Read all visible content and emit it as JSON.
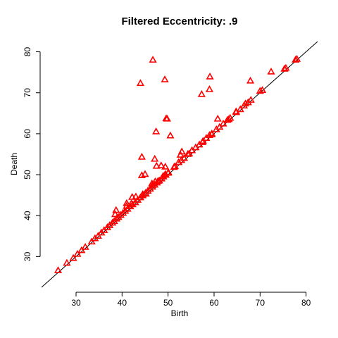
{
  "chart_data": {
    "type": "scatter",
    "title": "Filtered Eccentricity: .9",
    "xlabel": "Birth",
    "ylabel": "Death",
    "xlim": [
      22.5,
      82.5
    ],
    "ylim": [
      22.5,
      82.5
    ],
    "xticks": [
      30,
      40,
      50,
      60,
      70,
      80
    ],
    "yticks": [
      30,
      40,
      50,
      60,
      70,
      80
    ],
    "grid": false,
    "marker": "open-triangle",
    "color": "#ff0000",
    "reference_line": {
      "label": "",
      "slope": 1,
      "intercept": 0,
      "color": "#000000"
    },
    "points": [
      {
        "x": 26.1,
        "y": 26.6
      },
      {
        "x": 28.0,
        "y": 28.4
      },
      {
        "x": 29.4,
        "y": 29.6
      },
      {
        "x": 30.3,
        "y": 30.6
      },
      {
        "x": 31.2,
        "y": 31.5
      },
      {
        "x": 32.0,
        "y": 32.3
      },
      {
        "x": 33.4,
        "y": 33.6
      },
      {
        "x": 34.1,
        "y": 34.4
      },
      {
        "x": 34.8,
        "y": 35.0
      },
      {
        "x": 35.5,
        "y": 35.8
      },
      {
        "x": 36.1,
        "y": 36.4
      },
      {
        "x": 36.8,
        "y": 37.1
      },
      {
        "x": 37.3,
        "y": 37.6
      },
      {
        "x": 37.9,
        "y": 38.2
      },
      {
        "x": 38.3,
        "y": 38.6
      },
      {
        "x": 38.8,
        "y": 39.2
      },
      {
        "x": 39.2,
        "y": 39.6
      },
      {
        "x": 39.7,
        "y": 40.1
      },
      {
        "x": 40.2,
        "y": 40.6
      },
      {
        "x": 40.7,
        "y": 41.1
      },
      {
        "x": 41.2,
        "y": 41.6
      },
      {
        "x": 41.8,
        "y": 42.2
      },
      {
        "x": 42.3,
        "y": 42.7
      },
      {
        "x": 42.9,
        "y": 43.2
      },
      {
        "x": 43.4,
        "y": 43.8
      },
      {
        "x": 44.0,
        "y": 44.4
      },
      {
        "x": 44.5,
        "y": 44.9
      },
      {
        "x": 45.1,
        "y": 45.5
      },
      {
        "x": 45.6,
        "y": 46.0
      },
      {
        "x": 46.1,
        "y": 46.5
      },
      {
        "x": 46.6,
        "y": 47.0
      },
      {
        "x": 47.1,
        "y": 47.5
      },
      {
        "x": 47.6,
        "y": 48.0
      },
      {
        "x": 48.1,
        "y": 48.5
      },
      {
        "x": 48.6,
        "y": 49.0
      },
      {
        "x": 49.0,
        "y": 49.5
      },
      {
        "x": 49.5,
        "y": 49.9
      },
      {
        "x": 50.0,
        "y": 50.4
      },
      {
        "x": 51.5,
        "y": 52.0
      },
      {
        "x": 52.3,
        "y": 53.0
      },
      {
        "x": 52.9,
        "y": 53.5
      },
      {
        "x": 53.5,
        "y": 54.0
      },
      {
        "x": 54.3,
        "y": 55.0
      },
      {
        "x": 55.2,
        "y": 55.9
      },
      {
        "x": 56.0,
        "y": 56.6
      },
      {
        "x": 56.8,
        "y": 57.3
      },
      {
        "x": 57.6,
        "y": 58.2
      },
      {
        "x": 58.3,
        "y": 58.9
      },
      {
        "x": 59.0,
        "y": 59.6
      },
      {
        "x": 59.5,
        "y": 60.0
      },
      {
        "x": 60.5,
        "y": 61.0
      },
      {
        "x": 61.2,
        "y": 61.6
      },
      {
        "x": 62.0,
        "y": 62.4
      },
      {
        "x": 62.9,
        "y": 63.3
      },
      {
        "x": 63.5,
        "y": 63.8
      },
      {
        "x": 64.8,
        "y": 65.2
      },
      {
        "x": 65.7,
        "y": 65.9
      },
      {
        "x": 66.5,
        "y": 66.8
      },
      {
        "x": 67.4,
        "y": 67.6
      },
      {
        "x": 68.0,
        "y": 68.2
      },
      {
        "x": 70.0,
        "y": 70.4
      },
      {
        "x": 70.5,
        "y": 70.6
      },
      {
        "x": 75.3,
        "y": 75.8
      },
      {
        "x": 75.6,
        "y": 76.0
      },
      {
        "x": 77.7,
        "y": 78.0
      },
      {
        "x": 78.0,
        "y": 78.2
      },
      {
        "x": 38.5,
        "y": 40.3
      },
      {
        "x": 41.0,
        "y": 43.0
      },
      {
        "x": 42.2,
        "y": 44.5
      },
      {
        "x": 43.0,
        "y": 44.6
      },
      {
        "x": 44.5,
        "y": 45.2
      },
      {
        "x": 45.2,
        "y": 45.3
      },
      {
        "x": 46.5,
        "y": 47.8
      },
      {
        "x": 47.8,
        "y": 48.4
      },
      {
        "x": 48.9,
        "y": 49.6
      },
      {
        "x": 38.7,
        "y": 41.3
      },
      {
        "x": 41.0,
        "y": 42.3
      },
      {
        "x": 42.0,
        "y": 42.9
      },
      {
        "x": 44.3,
        "y": 49.8
      },
      {
        "x": 45.0,
        "y": 50.1
      },
      {
        "x": 46.6,
        "y": 47.4
      },
      {
        "x": 47.2,
        "y": 48.3
      },
      {
        "x": 47.5,
        "y": 52.1
      },
      {
        "x": 48.5,
        "y": 52.2
      },
      {
        "x": 49.4,
        "y": 51.9
      },
      {
        "x": 50.1,
        "y": 50.5
      },
      {
        "x": 51.3,
        "y": 51.8
      },
      {
        "x": 53.0,
        "y": 55.6
      },
      {
        "x": 52.7,
        "y": 54.8
      },
      {
        "x": 54.6,
        "y": 55.1
      },
      {
        "x": 44.3,
        "y": 54.3
      },
      {
        "x": 47.1,
        "y": 53.8
      },
      {
        "x": 49.4,
        "y": 50.1
      },
      {
        "x": 50.5,
        "y": 59.5
      },
      {
        "x": 47.4,
        "y": 60.5
      },
      {
        "x": 49.6,
        "y": 63.7
      },
      {
        "x": 49.8,
        "y": 63.6
      },
      {
        "x": 57.5,
        "y": 57.9
      },
      {
        "x": 59.5,
        "y": 59.8
      },
      {
        "x": 60.8,
        "y": 63.6
      },
      {
        "x": 63.2,
        "y": 63.5
      },
      {
        "x": 64.8,
        "y": 65.4
      },
      {
        "x": 66.8,
        "y": 67.3
      },
      {
        "x": 67.9,
        "y": 72.9
      },
      {
        "x": 72.4,
        "y": 75.1
      },
      {
        "x": 44.0,
        "y": 72.3
      },
      {
        "x": 46.7,
        "y": 78.0
      },
      {
        "x": 49.3,
        "y": 73.2
      },
      {
        "x": 57.3,
        "y": 69.6
      },
      {
        "x": 59.0,
        "y": 70.8
      },
      {
        "x": 59.1,
        "y": 73.9
      }
    ]
  }
}
